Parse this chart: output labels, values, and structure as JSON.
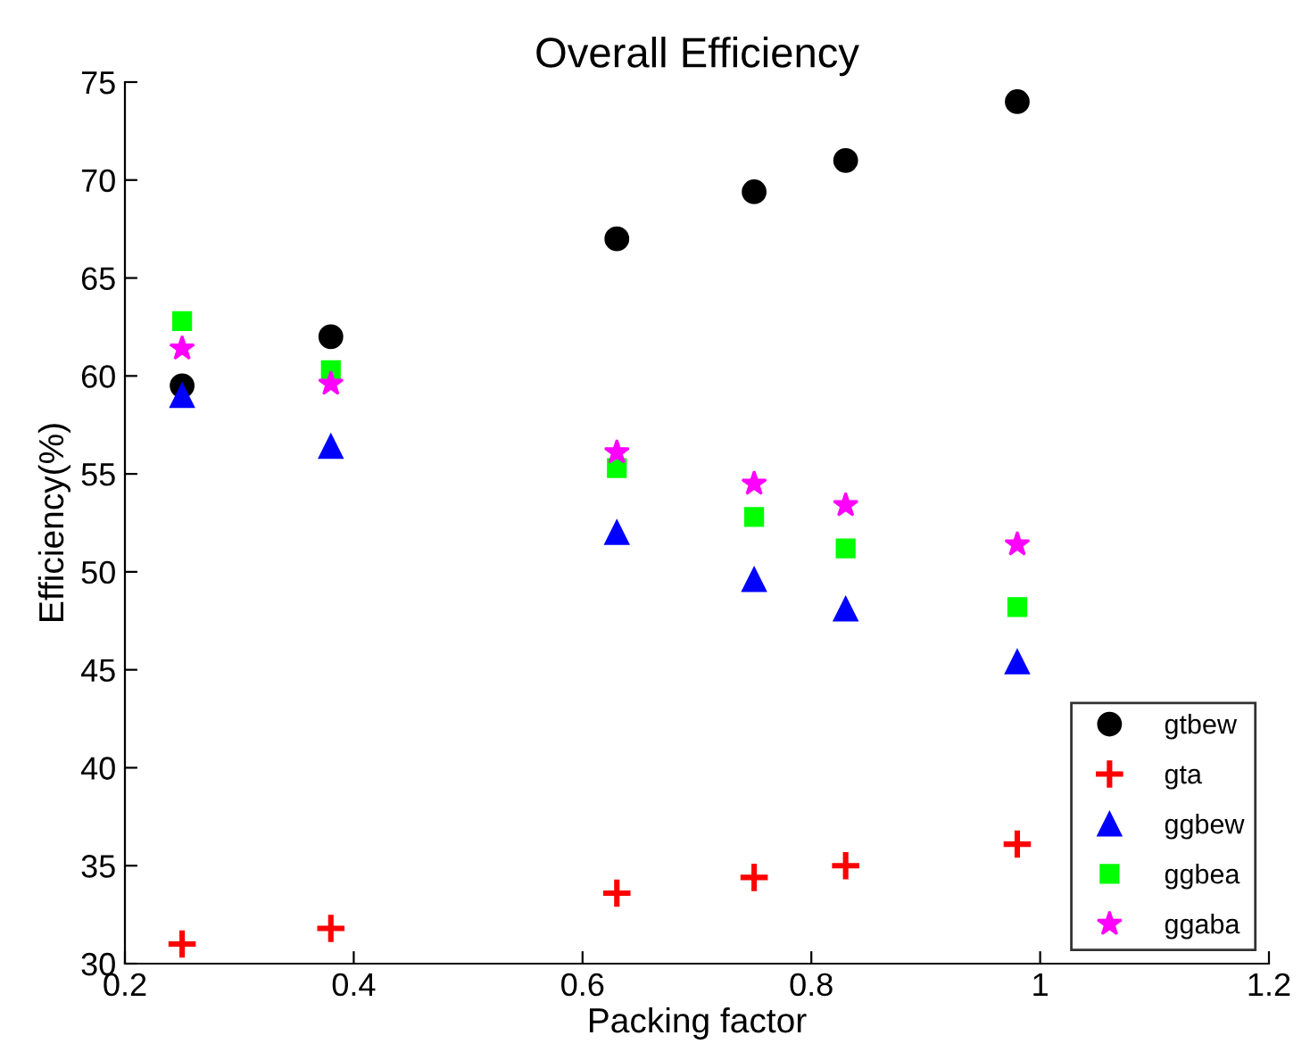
{
  "chart_data": {
    "type": "scatter",
    "title": "Overall Efficiency",
    "xlabel": "Packing factor",
    "ylabel": "Efficiency(%)",
    "x": [
      0.25,
      0.38,
      0.63,
      0.75,
      0.83,
      0.98
    ],
    "series": [
      {
        "name": "gtbew",
        "color": "#000000",
        "marker": "circle",
        "values": [
          59.5,
          62,
          67,
          69.4,
          71,
          74
        ]
      },
      {
        "name": "gta",
        "color": "#ff0000",
        "marker": "cross",
        "values": [
          31,
          31.8,
          33.6,
          34.4,
          35,
          36.1
        ]
      },
      {
        "name": "ggbew",
        "color": "#0000ff",
        "marker": "triangle",
        "values": [
          59,
          56.4,
          52,
          49.6,
          48.1,
          45.4
        ]
      },
      {
        "name": "ggbea",
        "color": "#00ff00",
        "marker": "square",
        "values": [
          62.8,
          60.3,
          55.3,
          52.8,
          51.2,
          48.2
        ]
      },
      {
        "name": "ggaba",
        "color": "#ff00ff",
        "marker": "star",
        "values": [
          61.4,
          59.6,
          56.1,
          54.5,
          53.4,
          51.4
        ]
      }
    ],
    "xlim": [
      0.2,
      1.2
    ],
    "xticks": [
      {
        "value": 0.2,
        "label": "0.2"
      },
      {
        "value": 0.4,
        "label": "0.4"
      },
      {
        "value": 0.6,
        "label": "0.6"
      },
      {
        "value": 0.8,
        "label": "0.8"
      },
      1,
      {
        "value": 1.2,
        "label": "1.2"
      }
    ],
    "ylim": [
      30,
      75
    ],
    "yticks": [
      30,
      35,
      40,
      45,
      50,
      55,
      60,
      65,
      70,
      75
    ],
    "grid": false,
    "legend": "bottom right"
  }
}
